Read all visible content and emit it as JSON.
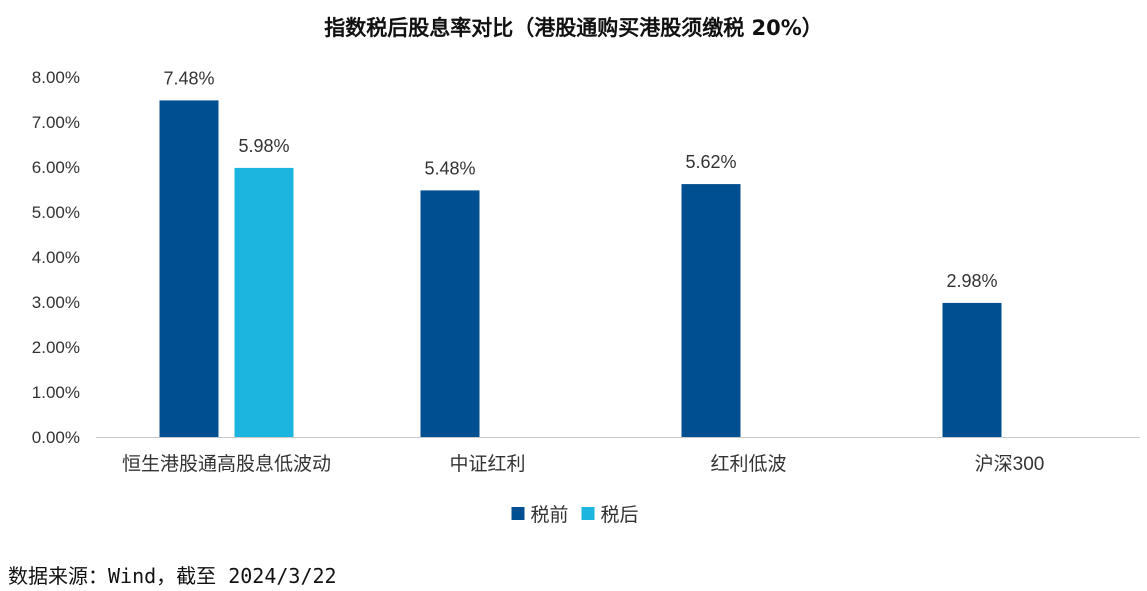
{
  "chart_data": {
    "type": "bar",
    "title": "指数税后股息率对比（港股通购买港股须缴税 20%）",
    "categories": [
      "恒生港股通高股息低波动",
      "中证红利",
      "红利低波",
      "沪深300"
    ],
    "series": [
      {
        "name": "税前",
        "color": "#004F90",
        "values": [
          7.48,
          5.48,
          5.62,
          2.98
        ]
      },
      {
        "name": "税后",
        "color": "#1CB5E0",
        "values": [
          5.98,
          null,
          null,
          null
        ]
      }
    ],
    "ylim": [
      0,
      8
    ],
    "yticks": [
      0,
      1,
      2,
      3,
      4,
      5,
      6,
      7,
      8
    ],
    "ytick_labels": [
      "0.00%",
      "1.00%",
      "2.00%",
      "3.00%",
      "4.00%",
      "5.00%",
      "6.00%",
      "7.00%",
      "8.00%"
    ],
    "data_labels": [
      [
        "7.48%",
        "5.48%",
        "5.62%",
        "2.98%"
      ],
      [
        "5.98%",
        "",
        "",
        ""
      ]
    ],
    "legend_position": "bottom",
    "grid": false
  },
  "source_note": "数据来源：Wind，截至 2024/3/22"
}
